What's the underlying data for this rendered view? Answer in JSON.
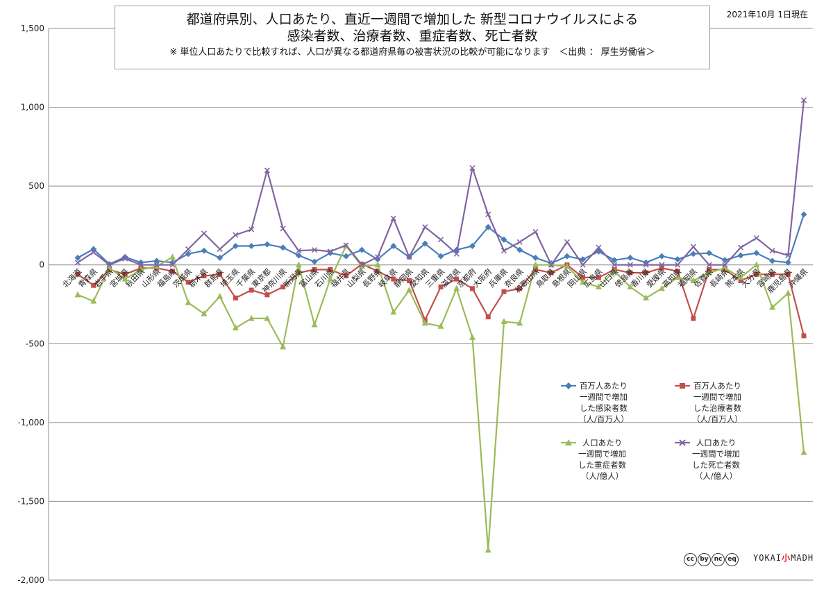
{
  "title": {
    "line1": "都道府県別、人口あたり、直近一週間で増加した 新型コロナウイルスによる",
    "line2": "感染者数、治療者数、重症者数、死亡者数",
    "note": "※ 単位人口あたりで比較すれば、人口が異なる都道府県毎の被害状況の比較が可能になります　＜出典 ： 厚生労働省＞"
  },
  "date": "2021年10月 1日現在",
  "branding": {
    "license_icons": [
      "cc",
      "by",
      "nc",
      "eq"
    ],
    "logo_left": "YOKAI",
    "logo_mid": "小",
    "logo_right": "MADH"
  },
  "chart_data": {
    "type": "line",
    "title": "都道府県別、人口あたり、直近一週間で増加した 新型コロナウイルスによる 感染者数、治療者数、重症者数、死亡者数",
    "xlabel": "",
    "ylabel": "",
    "ylim": [
      -2000,
      1500
    ],
    "yticks": [
      1500,
      1000,
      500,
      0,
      -500,
      -1000,
      -1500,
      -2000
    ],
    "ytick_labels": [
      "1,500",
      "1,000",
      "500",
      "0",
      "-500",
      "-1,000",
      "-1,500",
      "-2,000"
    ],
    "grid": true,
    "legend_position": "bottom-right",
    "categories": [
      "北海道",
      "青森県",
      "岩手県",
      "宮城県",
      "秋田県",
      "山形県",
      "福島県",
      "茨城県",
      "栃木県",
      "群馬県",
      "埼玉県",
      "千葉県",
      "東京都",
      "神奈川県",
      "新潟県",
      "富山県",
      "石川県",
      "福井県",
      "山梨県",
      "長野県",
      "岐阜県",
      "静岡県",
      "愛知県",
      "三重県",
      "滋賀県",
      "京都府",
      "大阪府",
      "兵庫県",
      "奈良県",
      "和歌山県",
      "鳥取県",
      "島根県",
      "岡山県",
      "広島県",
      "山口県",
      "徳島県",
      "香川県",
      "愛媛県",
      "高知県",
      "福岡県",
      "佐賀県",
      "長崎県",
      "熊本県",
      "大分県",
      "宮崎県",
      "鹿児島県",
      "沖縄県"
    ],
    "series": [
      {
        "name": "百万人あたり一週間で増加した感染者数（人/百万人）",
        "legend_lines": [
          "百万人あたり",
          "一週間で増加",
          "した感染者数",
          "（人/百万人）"
        ],
        "color": "#4a7ebb",
        "marker": "diamond",
        "values": [
          45,
          100,
          5,
          50,
          15,
          25,
          15,
          70,
          90,
          45,
          120,
          120,
          130,
          110,
          60,
          20,
          75,
          55,
          95,
          35,
          120,
          50,
          135,
          55,
          95,
          120,
          240,
          160,
          95,
          45,
          10,
          55,
          35,
          85,
          30,
          45,
          15,
          55,
          35,
          70,
          75,
          30,
          60,
          75,
          25,
          15,
          320
        ]
      },
      {
        "name": "百万人あたり一週間で増加した治療者数（人/百万人）",
        "legend_lines": [
          "百万人あたり",
          "一週間で増加",
          "した治療者数",
          "（人/百万人）"
        ],
        "color": "#c0504d",
        "marker": "square",
        "values": [
          -60,
          -130,
          -30,
          -60,
          -20,
          -20,
          -40,
          -110,
          -70,
          -60,
          -210,
          -160,
          -190,
          -140,
          -50,
          -30,
          -30,
          -70,
          5,
          -40,
          -90,
          -100,
          -350,
          -140,
          -90,
          -150,
          -330,
          -170,
          -150,
          -30,
          -50,
          0,
          -80,
          -80,
          -30,
          -50,
          -50,
          -20,
          -40,
          -340,
          -30,
          -30,
          -100,
          -60,
          -60,
          -60,
          -450
        ]
      },
      {
        "name": "人口あたり一週間で増加した重症者数（人/億人）",
        "legend_lines": [
          "人口あたり",
          "一週間で増加",
          "した重症者数",
          "（人/億人）"
        ],
        "color": "#9bbb59",
        "marker": "triangle",
        "values": [
          -190,
          -230,
          -20,
          -90,
          -30,
          -10,
          50,
          -240,
          -310,
          -200,
          -400,
          -340,
          -340,
          -520,
          0,
          -380,
          -90,
          120,
          -10,
          0,
          -300,
          -160,
          -370,
          -390,
          -150,
          -460,
          -1810,
          -360,
          -370,
          0,
          0,
          -10,
          -110,
          -140,
          -40,
          -140,
          -210,
          -150,
          -80,
          -100,
          -50,
          -20,
          -80,
          0,
          -270,
          -180,
          -1190
        ]
      },
      {
        "name": "人口あたり一週間で増加した死亡者数（人/億人）",
        "legend_lines": [
          "人口あたり",
          "一週間で増加",
          "した死亡者数",
          "（人/億人）"
        ],
        "color": "#8064a2",
        "marker": "x",
        "values": [
          15,
          80,
          0,
          40,
          0,
          0,
          0,
          100,
          200,
          100,
          190,
          225,
          600,
          230,
          90,
          95,
          85,
          125,
          0,
          50,
          295,
          50,
          240,
          160,
          70,
          615,
          320,
          90,
          145,
          210,
          0,
          145,
          0,
          110,
          0,
          0,
          0,
          0,
          0,
          115,
          0,
          0,
          110,
          170,
          90,
          60,
          1045
        ]
      }
    ]
  }
}
